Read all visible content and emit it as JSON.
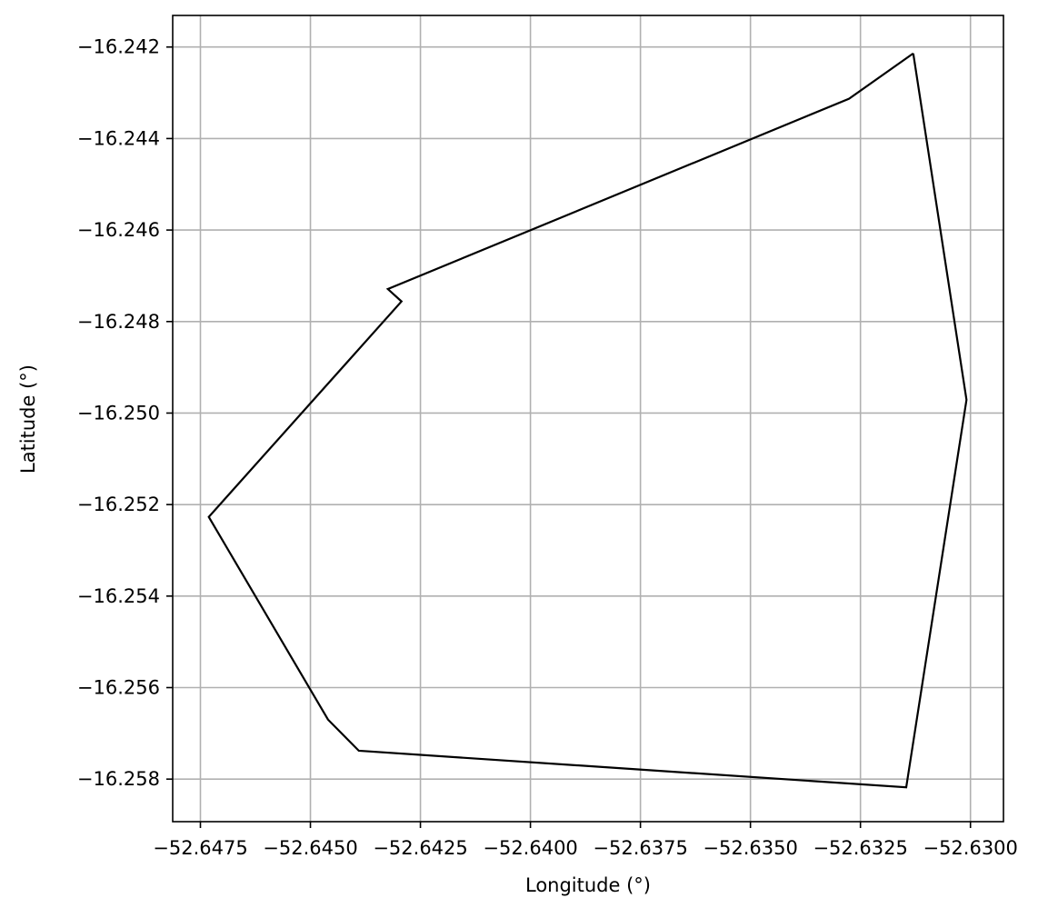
{
  "chart_data": {
    "type": "line",
    "title": "",
    "xlabel": "Longitude (°)",
    "ylabel": "Latitude (°)",
    "xlim": [
      -52.64813,
      -52.62925
    ],
    "ylim": [
      -16.25893,
      -16.24131
    ],
    "grid": true,
    "xticks": [
      -52.6475,
      -52.645,
      -52.6425,
      -52.64,
      -52.6375,
      -52.635,
      -52.6325,
      -52.63
    ],
    "xtick_labels": [
      "−52.6475",
      "−52.6450",
      "−52.6425",
      "−52.6400",
      "−52.6375",
      "−52.6350",
      "−52.6325",
      "−52.6300"
    ],
    "yticks": [
      -16.242,
      -16.244,
      -16.246,
      -16.248,
      -16.25,
      -16.252,
      -16.254,
      -16.256,
      -16.258
    ],
    "ytick_labels": [
      "−16.242",
      "−16.244",
      "−16.246",
      "−16.248",
      "−16.250",
      "−16.252",
      "−16.254",
      "−16.256",
      "−16.258"
    ],
    "series": [
      {
        "color": "#000000",
        "points": [
          {
            "x": -52.6313,
            "y": -16.24214
          },
          {
            "x": -52.63009,
            "y": -16.24971
          },
          {
            "x": -52.63146,
            "y": -16.25818
          },
          {
            "x": -52.6439,
            "y": -16.25738
          },
          {
            "x": -52.6446,
            "y": -16.2567
          },
          {
            "x": -52.64731,
            "y": -16.25227
          },
          {
            "x": -52.64293,
            "y": -16.24756
          },
          {
            "x": -52.64324,
            "y": -16.24729
          },
          {
            "x": -52.63276,
            "y": -16.24313
          },
          {
            "x": -52.6313,
            "y": -16.24214
          }
        ]
      }
    ]
  }
}
